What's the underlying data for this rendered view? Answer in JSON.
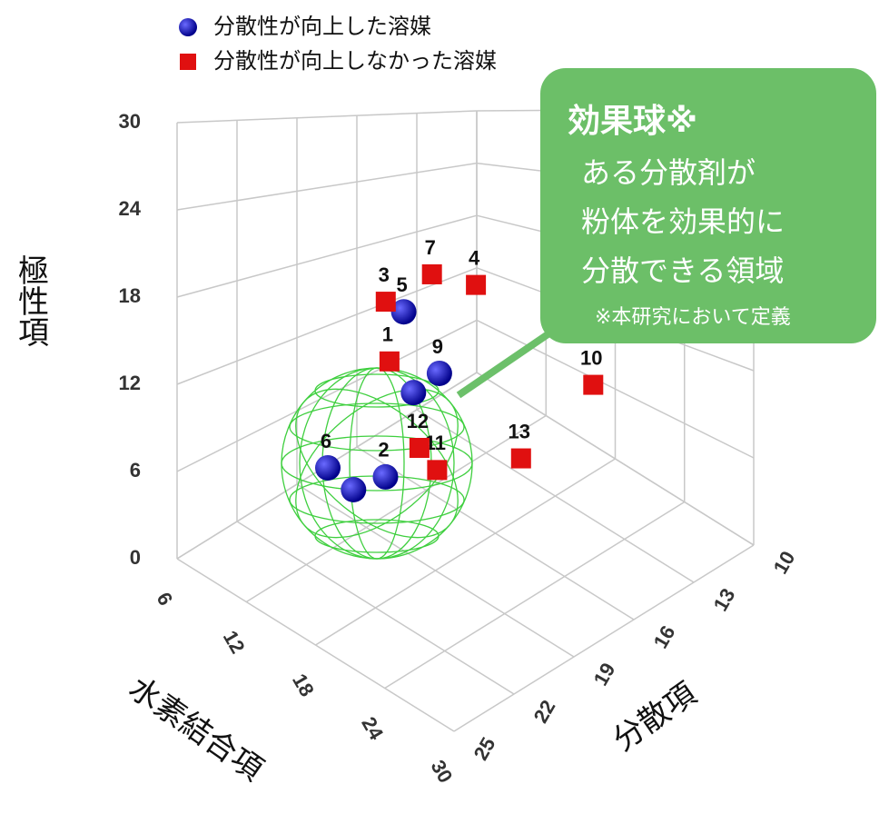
{
  "chart_data": {
    "type": "scatter3d",
    "xlabel": "水素結合項",
    "ylabel": "分散項",
    "zlabel": "極性項",
    "xlim": [
      6,
      30
    ],
    "xticks": [
      6,
      12,
      18,
      24,
      30
    ],
    "ylim": [
      10,
      25
    ],
    "yticks": [
      10,
      13,
      16,
      19,
      22,
      25
    ],
    "zlim": [
      0,
      30
    ],
    "zticks": [
      0,
      6,
      12,
      18,
      24,
      30
    ],
    "grid": true,
    "series": [
      {
        "name": "分散性が向上した溶媒",
        "color": "#1010c8",
        "marker": "circle",
        "labels": [
          "5",
          "9",
          null,
          "6",
          null,
          "2"
        ],
        "x": [
          15.6,
          18,
          18,
          15.6,
          18,
          18
        ],
        "y": [
          19.2,
          18.8,
          20.1,
          23,
          23.1,
          21.5
        ],
        "z": [
          18.5,
          14.6,
          14.1,
          9.6,
          9.3,
          9.0
        ]
      },
      {
        "name": "分散性が向上しなかった溶媒",
        "color": "#e01010",
        "marker": "square",
        "labels": [
          "7",
          "4",
          "3",
          "1",
          "10",
          "13",
          "11",
          "12"
        ],
        "x": [
          13.2,
          13.2,
          15.6,
          18,
          18,
          20.4,
          20.4,
          18
        ],
        "y": [
          16.4,
          14.2,
          20.1,
          21.3,
          11.1,
          16.1,
          20.3,
          19.8
        ],
        "z": [
          18.8,
          16.5,
          19.8,
          17.2,
          7.4,
          7.1,
          9.7,
          9.8
        ]
      }
    ],
    "annotation": {
      "title": "効果球※",
      "lines": [
        "ある分散剤が",
        "粉体を効果的に",
        "分散できる領域"
      ],
      "note": "※本研究において定義"
    }
  }
}
